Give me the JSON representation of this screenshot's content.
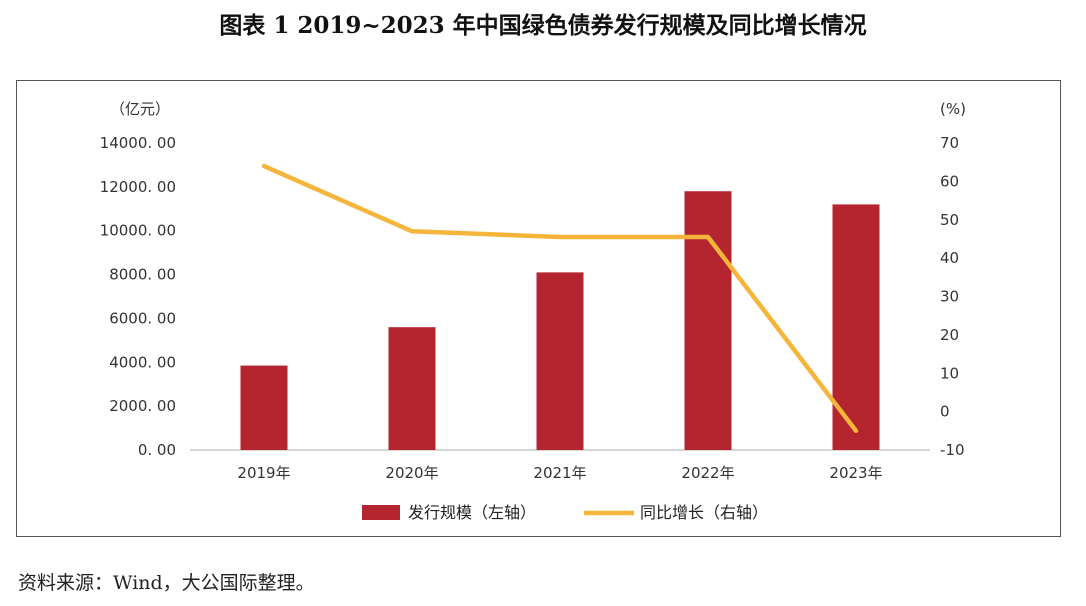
{
  "title": "图表 1 2019~2023 年中国绿色债券发行规模及同比增长情况",
  "source": "资料来源：Wind，大公国际整理。",
  "colors": {
    "bar": "#B5252F",
    "line": "#F5B53A",
    "axis": "#AAAAAA"
  },
  "chart_data": {
    "type": "bar",
    "categories": [
      "2019年",
      "2020年",
      "2021年",
      "2022年",
      "2023年"
    ],
    "series": [
      {
        "name": "发行规模（左轴）",
        "chart": "bar",
        "axis": "left",
        "values": [
          3850,
          5600,
          8100,
          11800,
          11200
        ]
      },
      {
        "name": "同比增长（右轴）",
        "chart": "line",
        "axis": "right",
        "values": [
          64,
          47,
          45.5,
          45.5,
          -5
        ]
      }
    ],
    "y_left": {
      "unit": "（亿元）",
      "min": 0,
      "max": 14000,
      "step": 2000,
      "ticks": [
        "0. 00",
        "2000. 00",
        "4000. 00",
        "6000. 00",
        "8000. 00",
        "10000. 00",
        "12000. 00",
        "14000. 00"
      ]
    },
    "y_right": {
      "unit": "(%)",
      "min": -10,
      "max": 70,
      "step": 10,
      "ticks": [
        "-10",
        "0",
        "10",
        "20",
        "30",
        "40",
        "50",
        "60",
        "70"
      ]
    },
    "grid": false,
    "legend": "bottom"
  }
}
